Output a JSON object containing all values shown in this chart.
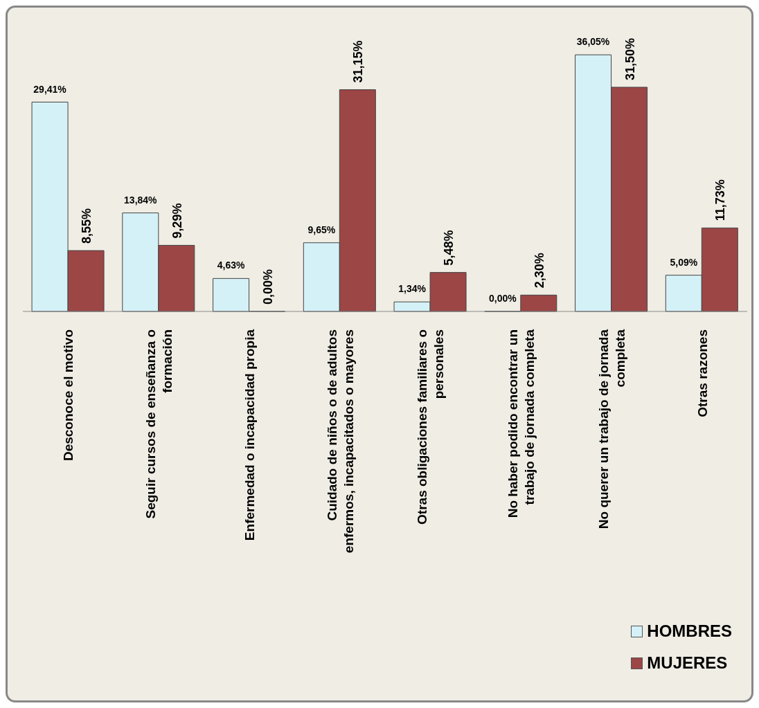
{
  "chart_data": {
    "type": "bar",
    "categories": [
      "Desconoce el motivo",
      "Seguir cursos de enseñanza o formación",
      "Enfermedad o incapacidad  propia",
      "Cuidado de niños o de adultos enfermos, incapacitados  o mayores",
      "Otras obligaciones  familiares o personales",
      "No haber podido encontrar un trabajo de jornada completa",
      "No querer un trabajo de jornada completa",
      "Otras razones"
    ],
    "series": [
      {
        "name": "HOMBRES",
        "color": "#d4f1f7",
        "values": [
          29.41,
          13.84,
          4.63,
          9.65,
          1.34,
          0.0,
          36.05,
          5.09
        ],
        "value_labels": [
          "29,41%",
          "13,84%",
          "4,63%",
          "9,65%",
          "1,34%",
          "0,00%",
          "36,05%",
          "5,09%"
        ]
      },
      {
        "name": "MUJERES",
        "color": "#9c4646",
        "values": [
          8.55,
          9.29,
          0.0,
          31.15,
          5.48,
          2.3,
          31.5,
          11.73
        ],
        "value_labels": [
          "8,55%",
          "9,29%",
          "0,00%",
          "31,15%",
          "5,48%",
          "2,30%",
          "31,50%",
          "11,73%"
        ]
      }
    ],
    "legend": "bottom right",
    "grid": false
  }
}
